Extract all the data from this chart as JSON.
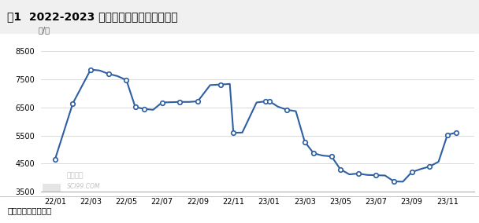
{
  "title": "图1  2022-2023 年中国地区成交价格走势图",
  "ylabel": "元/吨",
  "source": "数据来源：卓创资讯",
  "watermark1": "卓创资讯",
  "watermark2": "SCI99.COM",
  "ylim": [
    3500,
    8900
  ],
  "yticks": [
    3500,
    4500,
    5500,
    6500,
    7500,
    8500
  ],
  "line_color": "#2e5fa3",
  "marker_facecolor": "#ffffff",
  "marker_edgecolor": "#2e5fa3",
  "bg_color": "#ffffff",
  "grid_color": "#cccccc",
  "title_bg": "#e8e8e8",
  "x_labels": [
    "22/01",
    "22/03",
    "22/05",
    "22/07",
    "22/09",
    "22/11",
    "23/01",
    "23/03",
    "23/05",
    "23/07",
    "23/09",
    "23/11"
  ],
  "x_tick_positions": [
    0,
    2,
    4,
    6,
    8,
    10,
    12,
    14,
    16,
    18,
    20,
    22
  ],
  "xlim": [
    -0.8,
    23.5
  ],
  "data_x": [
    0,
    1,
    2,
    2.5,
    3,
    3.5,
    4,
    4.5,
    5,
    5.5,
    6,
    6.5,
    7,
    7.5,
    8,
    8.7,
    9.3,
    9.8,
    10,
    10.5,
    11.3,
    11.8,
    12,
    12.5,
    13,
    13.5,
    14,
    14.5,
    15,
    15.5,
    16,
    16.5,
    17,
    17.5,
    18,
    18.5,
    19,
    19.5,
    20,
    20.5,
    21,
    21.5,
    22,
    22.5
  ],
  "data_y": [
    4650,
    6650,
    7850,
    7820,
    7700,
    7620,
    7480,
    6520,
    6450,
    6420,
    6680,
    6690,
    6700,
    6700,
    6720,
    7300,
    7320,
    7340,
    5600,
    5610,
    6680,
    6720,
    6730,
    6530,
    6420,
    6370,
    5280,
    4870,
    4790,
    4760,
    4300,
    4120,
    4150,
    4100,
    4090,
    4080,
    3870,
    3860,
    4200,
    4310,
    4400,
    4570,
    5530,
    5610
  ],
  "show_marker": [
    true,
    true,
    true,
    false,
    true,
    false,
    true,
    true,
    true,
    false,
    true,
    false,
    true,
    false,
    true,
    false,
    true,
    false,
    true,
    false,
    false,
    true,
    true,
    false,
    true,
    false,
    true,
    true,
    false,
    true,
    true,
    false,
    true,
    false,
    true,
    false,
    true,
    false,
    true,
    false,
    true,
    false,
    true,
    true
  ]
}
